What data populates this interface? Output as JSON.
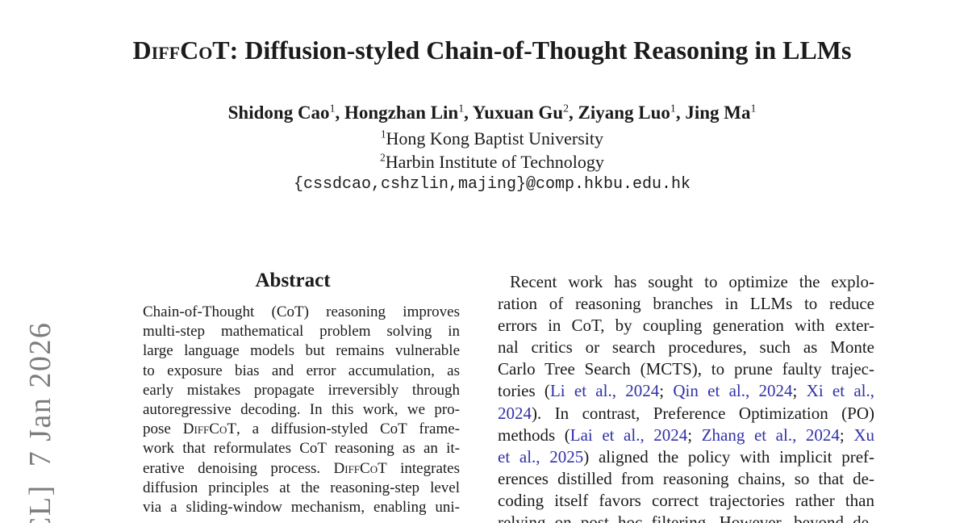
{
  "page": {
    "background": "#ffffff",
    "text_color": "#1b1b1b",
    "link_color": "#3131a8",
    "watermark_color": "#7c7c7c"
  },
  "watermark": {
    "text": "CL]  7 Jan 2026"
  },
  "header": {
    "title": [
      {
        "t": "DiffCoT",
        "s": "sc",
        "n": "title-brand"
      },
      {
        "t": ": Diffusion-styled Chain-of-Thought Reasoning in LLMs",
        "n": "title-rest"
      }
    ],
    "authors": [
      {
        "t": "Shidong Cao",
        "n": "author-name"
      },
      {
        "t": "1",
        "s": "sup",
        "n": "author-affil-mark"
      },
      {
        "t": ", "
      },
      {
        "t": "Hongzhan Lin",
        "n": "author-name"
      },
      {
        "t": "1",
        "s": "sup",
        "n": "author-affil-mark"
      },
      {
        "t": ", "
      },
      {
        "t": "Yuxuan Gu",
        "n": "author-name"
      },
      {
        "t": "2",
        "s": "sup",
        "n": "author-affil-mark"
      },
      {
        "t": ", "
      },
      {
        "t": "Ziyang Luo",
        "n": "author-name"
      },
      {
        "t": "1",
        "s": "sup",
        "n": "author-affil-mark"
      },
      {
        "t": ", "
      },
      {
        "t": "Jing Ma",
        "n": "author-name"
      },
      {
        "t": "1",
        "s": "sup",
        "n": "author-affil-mark"
      }
    ],
    "affiliation1": [
      {
        "t": "1",
        "s": "sup",
        "n": "affil-mark"
      },
      {
        "t": "Hong Kong Baptist University",
        "n": "affiliation-name"
      }
    ],
    "affiliation2": [
      {
        "t": "2",
        "s": "sup",
        "n": "affil-mark"
      },
      {
        "t": "Harbin Institute of Technology",
        "n": "affiliation-name"
      }
    ],
    "email": "{cssdcao,cshzlin,majing}@comp.hkbu.edu.hk"
  },
  "abstract": {
    "heading": "Abstract",
    "lines": [
      [
        {
          "t": "Chain-of-Thought (CoT) reasoning improves"
        }
      ],
      [
        {
          "t": "multi-step mathematical problem solving in"
        }
      ],
      [
        {
          "t": "large language models but remains vulnerable"
        }
      ],
      [
        {
          "t": "to exposure bias and error accumulation, as"
        }
      ],
      [
        {
          "t": "early mistakes propagate irreversibly through"
        }
      ],
      [
        {
          "t": "autoregressive decoding. In this work, we pro-"
        }
      ],
      [
        {
          "t": "pose "
        },
        {
          "t": "DiffCoT",
          "s": "sc",
          "n": "brand-smallcaps"
        },
        {
          "t": ", a diffusion-styled CoT frame-"
        }
      ],
      [
        {
          "t": "work that reformulates CoT reasoning as an it-"
        }
      ],
      [
        {
          "t": "erative denoising process. "
        },
        {
          "t": "DiffCoT",
          "s": "sc",
          "n": "brand-smallcaps"
        },
        {
          "t": " integrates"
        }
      ],
      [
        {
          "t": "diffusion principles at the reasoning-step level"
        }
      ],
      [
        {
          "t": "via a sliding-window mechanism, enabling uni-"
        }
      ]
    ]
  },
  "body": {
    "lines": [
      [
        {
          "t": "Recent work has sought to optimize the explo-"
        }
      ],
      [
        {
          "t": "ration of reasoning branches in LLMs to reduce"
        }
      ],
      [
        {
          "t": "errors in CoT, by coupling generation with exter-"
        }
      ],
      [
        {
          "t": "nal critics or search procedures, such as Monte"
        }
      ],
      [
        {
          "t": "Carlo Tree Search (MCTS), to prune faulty trajec-"
        }
      ],
      [
        {
          "t": "tories ("
        },
        {
          "t": "Li et al., 2024",
          "s": "link"
        },
        {
          "t": "; "
        },
        {
          "t": "Qin et al., 2024",
          "s": "link"
        },
        {
          "t": "; "
        },
        {
          "t": "Xi et al.,",
          "s": "link"
        }
      ],
      [
        {
          "t": "2024",
          "s": "link"
        },
        {
          "t": "). In contrast, Preference Optimization (PO)"
        }
      ],
      [
        {
          "t": "methods ("
        },
        {
          "t": "Lai et al., 2024",
          "s": "link"
        },
        {
          "t": "; "
        },
        {
          "t": "Zhang et al., 2024",
          "s": "link"
        },
        {
          "t": "; "
        },
        {
          "t": "Xu",
          "s": "link"
        }
      ],
      [
        {
          "t": "et al., 2025",
          "s": "link"
        },
        {
          "t": ") aligned the policy with implicit pref-"
        }
      ],
      [
        {
          "t": "erences distilled from reasoning chains, so that de-"
        }
      ],
      [
        {
          "t": "coding itself favors correct trajectories rather than"
        }
      ],
      [
        {
          "t": "relying on post hoc filtering. However, beyond de-"
        }
      ]
    ]
  }
}
